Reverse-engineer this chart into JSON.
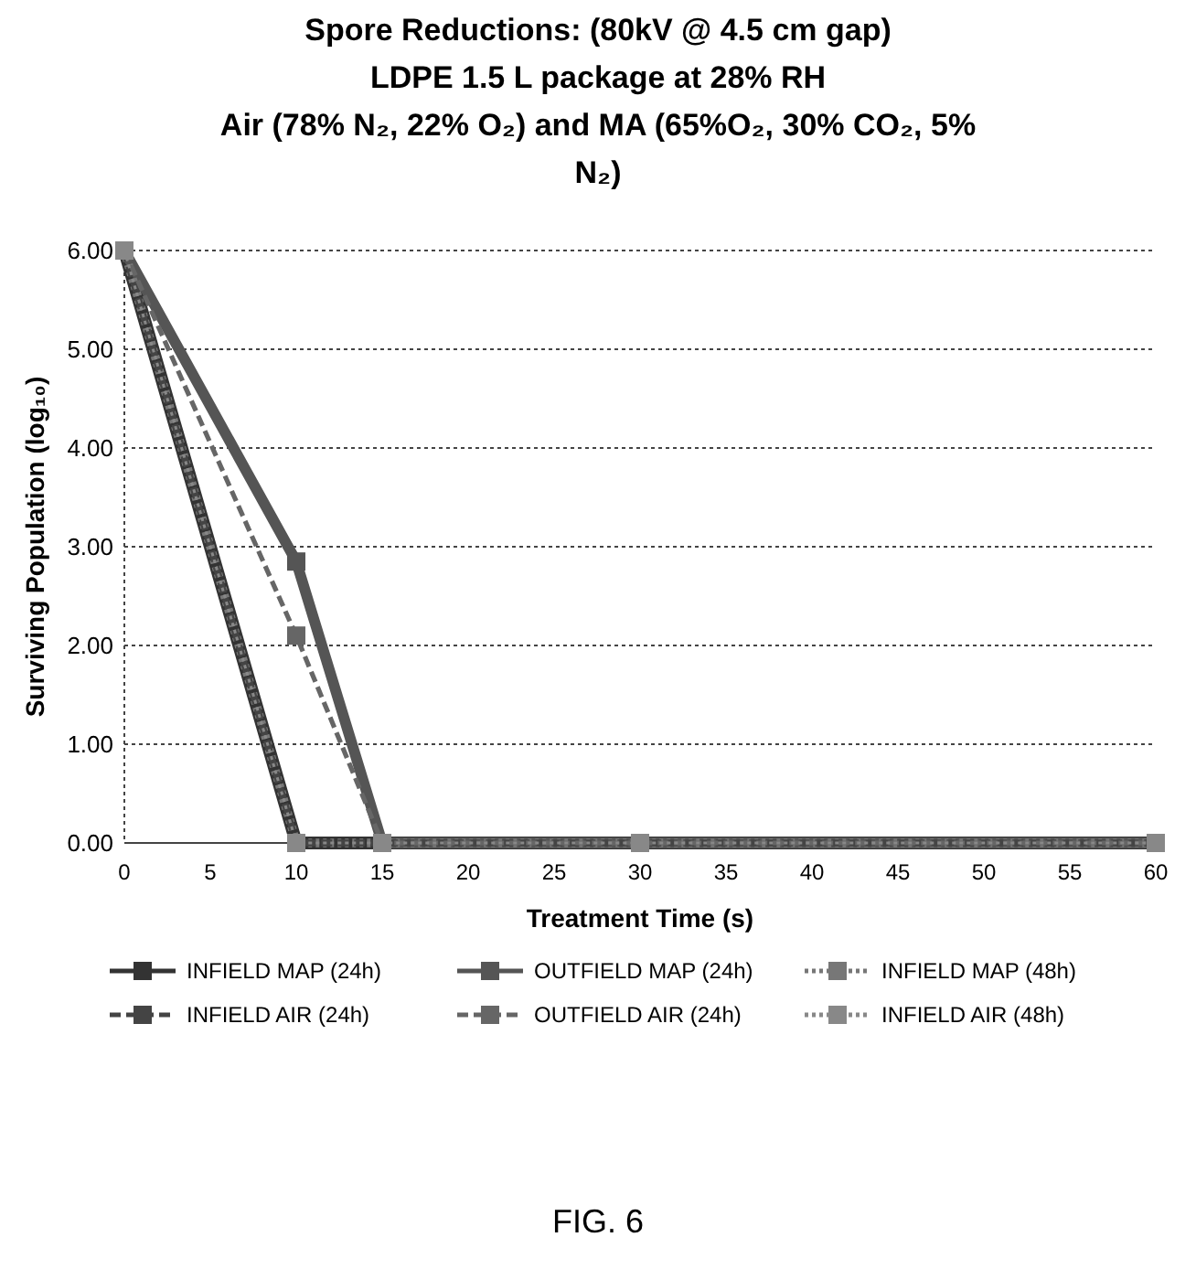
{
  "chart_data": {
    "type": "line",
    "title": "Spore Reductions:  (80kV @ 4.5 cm gap)",
    "subtitle": "LDPE 1.5 L package at 28% RH\nAir (78% N₂, 22% O₂) and MA (65%O₂, 30% CO₂, 5%\nN₂)",
    "xlabel": "Treatment Time (s)",
    "ylabel": "Surviving Population (log₁₀)",
    "x": [
      0,
      10,
      15,
      30,
      60
    ],
    "series": [
      {
        "name": "INFIELD MAP (24h)",
        "color": "#333333",
        "values": [
          6,
          0,
          0,
          0,
          0
        ],
        "line_style": "solid"
      },
      {
        "name": "OUTFIELD MAP (24h)",
        "color": "#555555",
        "values": [
          6,
          2.85,
          0,
          0,
          0
        ],
        "line_style": "solid"
      },
      {
        "name": "INFIELD MAP (48h)",
        "color": "#777777",
        "values": [
          6,
          0,
          0,
          0,
          0
        ],
        "line_style": "dotted"
      },
      {
        "name": "INFIELD AIR (24h)",
        "color": "#444444",
        "values": [
          6,
          0,
          0,
          0,
          0
        ],
        "line_style": "dashed"
      },
      {
        "name": "OUTFIELD AIR (24h)",
        "color": "#666666",
        "values": [
          6,
          2.1,
          0,
          0,
          0
        ],
        "line_style": "dashed"
      },
      {
        "name": "INFIELD AIR (48h)",
        "color": "#888888",
        "values": [
          6,
          0,
          0,
          0,
          0
        ],
        "line_style": "dotted"
      }
    ],
    "xlim": [
      0,
      60
    ],
    "xticks": [
      0,
      5,
      10,
      15,
      20,
      25,
      30,
      35,
      40,
      45,
      50,
      55,
      60
    ],
    "ylim": [
      0,
      6
    ],
    "yticks": [
      {
        "value": 0,
        "label": "0.00"
      },
      {
        "value": 1,
        "label": "1.00"
      },
      {
        "value": 2,
        "label": "2.00"
      },
      {
        "value": 3,
        "label": "3.00"
      },
      {
        "value": 4,
        "label": "4.00"
      },
      {
        "value": 5,
        "label": "5.00"
      },
      {
        "value": 6,
        "label": "6.00"
      }
    ],
    "grid": "y",
    "legend": "bottom",
    "marker": "square",
    "annotations": [
      "FIG. 6"
    ]
  }
}
